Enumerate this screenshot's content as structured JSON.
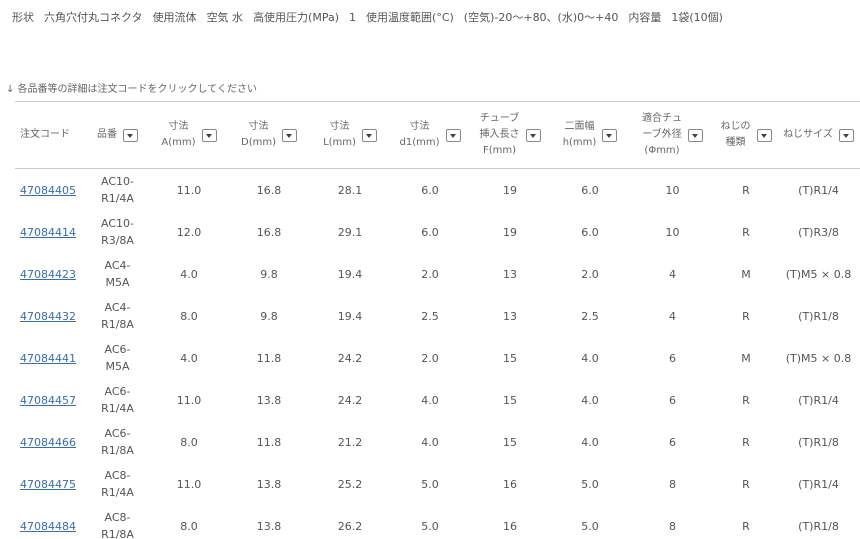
{
  "specs": [
    {
      "label": "形状",
      "value": "六角穴付丸コネクタ"
    },
    {
      "label": "使用流体",
      "value": "空気 水"
    },
    {
      "label": "高使用圧力(MPa)",
      "value": "1"
    },
    {
      "label": "使用温度範囲(°C)",
      "value": "(空気)-20～+80、(水)0～+40"
    },
    {
      "label": "内容量",
      "value": "1袋(10個)"
    }
  ],
  "note": "↓ 各品番等の詳細は注文コードをクリックしてください",
  "table": {
    "headers": [
      "注文コード",
      "品番",
      "寸法\nA(mm)",
      "寸法\nD(mm)",
      "寸法\nL(mm)",
      "寸法\nd1(mm)",
      "チューブ\n挿入長さ\nF(mm)",
      "二面幅\nh(mm)",
      "適合チュ\nーブ外径\n(Φmm)",
      "ねじの\n種類",
      "ねじサイズ"
    ],
    "rows": [
      [
        "47084405",
        "AC10-R1/4A",
        "11.0",
        "16.8",
        "28.1",
        "6.0",
        "19",
        "6.0",
        "10",
        "R",
        "(T)R1/4"
      ],
      [
        "47084414",
        "AC10-R3/8A",
        "12.0",
        "16.8",
        "29.1",
        "6.0",
        "19",
        "6.0",
        "10",
        "R",
        "(T)R3/8"
      ],
      [
        "47084423",
        "AC4-M5A",
        "4.0",
        "9.8",
        "19.4",
        "2.0",
        "13",
        "2.0",
        "4",
        "M",
        "(T)M5 × 0.8"
      ],
      [
        "47084432",
        "AC4-R1/8A",
        "8.0",
        "9.8",
        "19.4",
        "2.5",
        "13",
        "2.5",
        "4",
        "R",
        "(T)R1/8"
      ],
      [
        "47084441",
        "AC6-M5A",
        "4.0",
        "11.8",
        "24.2",
        "2.0",
        "15",
        "4.0",
        "6",
        "M",
        "(T)M5 × 0.8"
      ],
      [
        "47084457",
        "AC6-R1/4A",
        "11.0",
        "13.8",
        "24.2",
        "4.0",
        "15",
        "4.0",
        "6",
        "R",
        "(T)R1/4"
      ],
      [
        "47084466",
        "AC6-R1/8A",
        "8.0",
        "11.8",
        "21.2",
        "4.0",
        "15",
        "4.0",
        "6",
        "R",
        "(T)R1/8"
      ],
      [
        "47084475",
        "AC8-R1/4A",
        "11.0",
        "13.8",
        "25.2",
        "5.0",
        "16",
        "5.0",
        "8",
        "R",
        "(T)R1/4"
      ],
      [
        "47084484",
        "AC8-R1/8A",
        "8.0",
        "13.8",
        "26.2",
        "5.0",
        "16",
        "5.0",
        "8",
        "R",
        "(T)R1/8"
      ]
    ]
  }
}
